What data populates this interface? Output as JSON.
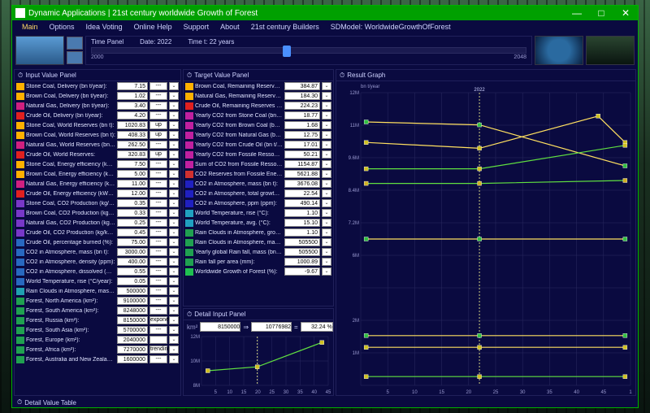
{
  "title": "Dynamic Applications | 21st century worldwide Growth of Forest",
  "sdmodel": "SDModel:  WorldwideGrowthOfForest",
  "menu": [
    "Main",
    "Options",
    "Idea Voting",
    "Online Help",
    "Support",
    "About",
    "21st century Builders"
  ],
  "time": {
    "label": "Time Panel",
    "date_lbl": "Date:",
    "date": "2022",
    "t_lbl": "Time t:",
    "t": "22  years",
    "start": "2000",
    "end": "2048"
  },
  "input_title": "Input Value Panel",
  "target_title": "Target Value Panel",
  "detail_title": "Detail Input Panel",
  "result_title": "Result Graph",
  "footer": "Detail Value Table",
  "inputs": [
    {
      "c": "#ffb000",
      "l": "Stone Coal, Delivery (bn t/year):",
      "v": "7.15",
      "u": "---"
    },
    {
      "c": "#ffb000",
      "l": "Brown Coal, Delivery (bn t/year):",
      "v": "1.02",
      "u": "---"
    },
    {
      "c": "#d02080",
      "l": "Natural Gas, Delivery (bn t/year):",
      "v": "3.40",
      "u": "---"
    },
    {
      "c": "#e02020",
      "l": "Crude Oil, Delivery (bn t/year):",
      "v": "4.20",
      "u": "---"
    },
    {
      "c": "#ffb000",
      "l": "Stone Coal, World Reserves (bn t):",
      "v": "1020.83",
      "u": "up"
    },
    {
      "c": "#ffb000",
      "l": "Brown Coal, World Reserves (bn t):",
      "v": "408.33",
      "u": "up"
    },
    {
      "c": "#d02080",
      "l": "Natural Gas, World Reserves (bn t):",
      "v": "262.50",
      "u": "---"
    },
    {
      "c": "#e02020",
      "l": "Crude Oil, World Reserves:",
      "v": "320.83",
      "u": "up"
    },
    {
      "c": "#ffb000",
      "l": "Stone Coal, Energy efficiency (kWh/...):",
      "v": "7.50",
      "u": "---"
    },
    {
      "c": "#ffb000",
      "l": "Brown Coal, Energy efficiency (kWh/...):",
      "v": "5.00",
      "u": "---"
    },
    {
      "c": "#d02080",
      "l": "Natural Gas, Energy efficiency (kWh/...):",
      "v": "11.00",
      "u": "---"
    },
    {
      "c": "#e02020",
      "l": "Crude Oil, Energy efficiency (kWh...):",
      "v": "12.00",
      "u": "---"
    },
    {
      "c": "#7838c8",
      "l": "Stone Coal, CO2 Production (kg/kW...):",
      "v": "0.35",
      "u": "---"
    },
    {
      "c": "#7838c8",
      "l": "Brown Coal, CO2 Production (kg/k...):",
      "v": "0.33",
      "u": "---"
    },
    {
      "c": "#7838c8",
      "l": "Natural Gas, CO2 Production (kg/kW...):",
      "v": "0.25",
      "u": "---"
    },
    {
      "c": "#7838c8",
      "l": "Crude Oil, CO2 Production (kg/kW...):",
      "v": "0.45",
      "u": "---"
    },
    {
      "c": "#2868c0",
      "l": "Crude Oil, percentage burned (%):",
      "v": "75.00",
      "u": "---"
    },
    {
      "c": "#2868c0",
      "l": "CO2 in Atmosphere, mass (bn t):",
      "v": "3000.00",
      "u": "---"
    },
    {
      "c": "#2868c0",
      "l": "CO2 in Atmosphere, density (ppm):",
      "v": "400.00",
      "u": "---"
    },
    {
      "c": "#2868c0",
      "l": "CO2 in Atmosphere, dissolved (%/y...):",
      "v": "0.55",
      "u": "---"
    },
    {
      "c": "#2868c0",
      "l": "World Temperature, rise (°C/year):",
      "v": "0.05",
      "u": "---"
    },
    {
      "c": "#20a0b0",
      "l": "Rain Clouds in Atmosphere, mass (...):",
      "v": "500000",
      "u": "---"
    },
    {
      "c": "#20a050",
      "l": "Forest, North America (km²):",
      "v": "9100000",
      "u": "---"
    },
    {
      "c": "#20a050",
      "l": "Forest, South America (km²):",
      "v": "8248000",
      "u": "---"
    },
    {
      "c": "#20a050",
      "l": "Forest, Russia (km²):",
      "v": "8150000",
      "u": "exponential?"
    },
    {
      "c": "#20a050",
      "l": "Forest, South Asia (km²):",
      "v": "5700000",
      "u": "---"
    },
    {
      "c": "#20a050",
      "l": "Forest, Europe (km²):",
      "v": "2040000",
      "u": ""
    },
    {
      "c": "#20a050",
      "l": "Forest, Africa (km²):",
      "v": "7270000",
      "u": "trending"
    },
    {
      "c": "#20a050",
      "l": "Forest, Australia and New Zealand...:",
      "v": "1600000",
      "u": "---"
    }
  ],
  "targets": [
    {
      "c": "#ffb000",
      "l": "Brown Coal, Remaining Reserves (bn t):",
      "v": "384.87"
    },
    {
      "c": "#ffb000",
      "l": "Natural Gas, Remaining Reserves (bn t):",
      "v": "184.30"
    },
    {
      "c": "#e02020",
      "l": "Crude Oil, Remaining Reserves (bn t):",
      "v": "224.23"
    },
    {
      "c": "#c020a0",
      "l": "Yearly CO2 from Stone Coal (bn t/year):",
      "v": "18.77"
    },
    {
      "c": "#c020a0",
      "l": "Yearly CO2 from Brown Coal (bn t/year):",
      "v": "1.68"
    },
    {
      "c": "#c020a0",
      "l": "Yearly CO2 from Natural Gas (bn t/year):",
      "v": "12.75"
    },
    {
      "c": "#c020a0",
      "l": "Yearly CO2 from Crude Oil (bn t/year):",
      "v": "17.01"
    },
    {
      "c": "#c020a0",
      "l": "Yearly CO2 from Fossile Ressources (bn...):",
      "v": "50.21"
    },
    {
      "c": "#c020a0",
      "l": "Sum of CO2 from Fossile Ressources (bn t):",
      "v": "1154.87"
    },
    {
      "c": "#d03030",
      "l": "CO2 Reserves from Fossile Energy (bn t):",
      "v": "5621.88"
    },
    {
      "c": "#2020c0",
      "l": "CO2 in Atmosphere, mass (bn t):",
      "v": "3676.08"
    },
    {
      "c": "#2020c0",
      "l": "CO2 in Atmosphere, total growth (%):",
      "v": "22.54"
    },
    {
      "c": "#2020c0",
      "l": "CO2 in Atmosphere, ppm (ppm):",
      "v": "490.14"
    },
    {
      "c": "#20a0c0",
      "l": "World Temperature, rise (°C):",
      "v": "1.10"
    },
    {
      "c": "#20a0c0",
      "l": "World Temperature, avg. (°C):",
      "v": "15.10"
    },
    {
      "c": "#20a050",
      "l": "Rain Clouds in Atmosphere, growth (%):",
      "v": "1.10"
    },
    {
      "c": "#20a050",
      "l": "Rain Clouds in Atmosphere, mass (bn t):",
      "v": "505500"
    },
    {
      "c": "#20a050",
      "l": "Yearly global Rain fall, mass (bn t/year):",
      "v": "505500"
    },
    {
      "c": "#20a050",
      "l": "Rain fall per area (mm):",
      "v": "1000.89"
    },
    {
      "c": "#20c050",
      "l": "Worldwide Growth of Forest (%):",
      "v": "-9.67"
    }
  ],
  "detail": {
    "from": "8150000",
    "to": "10776982",
    "pct": "32.24 %"
  },
  "detail_chart": {
    "ylabel": "km²",
    "yticks": [
      "12M",
      "10M",
      "8M"
    ],
    "xticks": [
      "",
      "5",
      "10",
      "15",
      "20",
      "25",
      "30",
      "35",
      "40",
      "45"
    ],
    "line_color": "#60e040",
    "marker": "#d0c020",
    "points": [
      [
        0.05,
        0.7
      ],
      [
        0.44,
        0.62
      ],
      [
        0.95,
        0.12
      ]
    ],
    "vline_x": 0.44
  },
  "result_chart": {
    "ylabel": "bn t/year",
    "year": "2022",
    "yticks": [
      "12M",
      "11M",
      "9.6M",
      "8.4M",
      "7.2M",
      "6M",
      "",
      "2M",
      "1M",
      ""
    ],
    "xticks": [
      "",
      "5",
      "10",
      "15",
      "20",
      "25",
      "30",
      "35",
      "40",
      "45",
      "1"
    ],
    "vline_x": 0.44,
    "grid": "#2a2a60",
    "series": [
      {
        "color": "#ffe060",
        "pts": [
          [
            0.02,
            0.1
          ],
          [
            0.44,
            0.11
          ],
          [
            0.98,
            0.25
          ]
        ],
        "marker": "#30c040"
      },
      {
        "color": "#ffe060",
        "pts": [
          [
            0.02,
            0.17
          ],
          [
            0.44,
            0.19
          ],
          [
            0.88,
            0.08
          ],
          [
            0.98,
            0.17
          ]
        ],
        "marker": "#d0c020"
      },
      {
        "color": "#60e040",
        "pts": [
          [
            0.02,
            0.26
          ],
          [
            0.44,
            0.26
          ],
          [
            0.98,
            0.18
          ]
        ],
        "marker": "#d0c020"
      },
      {
        "color": "#60e040",
        "pts": [
          [
            0.02,
            0.31
          ],
          [
            0.44,
            0.31
          ],
          [
            0.98,
            0.3
          ]
        ],
        "marker": "#d0b020"
      },
      {
        "color": "#ffe060",
        "pts": [
          [
            0.02,
            0.5
          ],
          [
            0.44,
            0.5
          ],
          [
            0.98,
            0.5
          ]
        ],
        "marker": "#30c040"
      },
      {
        "color": "#ffe060",
        "pts": [
          [
            0.02,
            0.83
          ],
          [
            0.44,
            0.83
          ],
          [
            0.98,
            0.83
          ]
        ],
        "marker": "#30c040"
      },
      {
        "color": "#ffe060",
        "pts": [
          [
            0.02,
            0.87
          ],
          [
            0.44,
            0.87
          ],
          [
            0.98,
            0.87
          ]
        ],
        "marker": "#d0c020"
      },
      {
        "color": "#60e040",
        "pts": [
          [
            0.02,
            0.97
          ],
          [
            0.44,
            0.97
          ],
          [
            0.98,
            0.97
          ]
        ],
        "marker": "#d0c020"
      }
    ]
  }
}
